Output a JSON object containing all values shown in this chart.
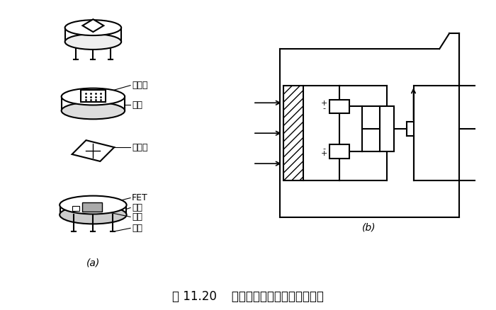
{
  "title": "图 11.20    热释电人体红外传感器的结构",
  "label_a": "(a)",
  "label_b": "(b)",
  "bg_color": "#ffffff",
  "fg_color": "#000000",
  "labels": {
    "lvguangpian": "滤光片",
    "guanmao": "管帽",
    "minjingyuan": "敏感元",
    "FET": "FET",
    "guanzuo": "管座",
    "gaoz": "高阻",
    "yinxian": "引线"
  },
  "figsize": [
    7.0,
    4.38
  ],
  "dpi": 100
}
